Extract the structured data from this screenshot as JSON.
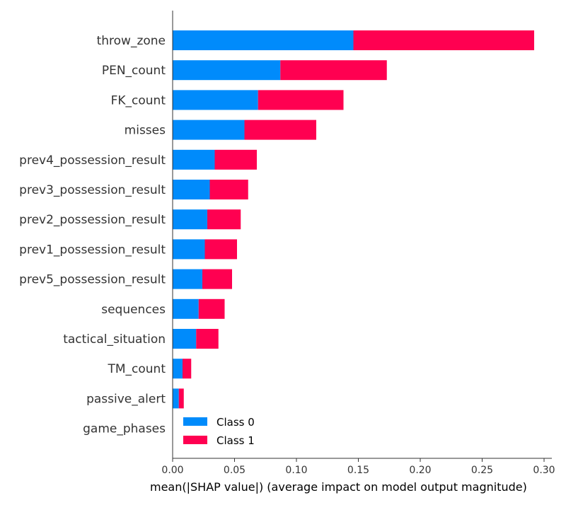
{
  "chart_data": {
    "type": "bar",
    "orientation": "horizontal",
    "stacked": true,
    "categories": [
      "throw_zone",
      "PEN_count",
      "FK_count",
      "misses",
      "prev4_possession_result",
      "prev3_possession_result",
      "prev2_possession_result",
      "prev1_possession_result",
      "prev5_possession_result",
      "sequences",
      "tactical_situation",
      "TM_count",
      "passive_alert",
      "game_phases"
    ],
    "series": [
      {
        "name": "Class 0",
        "color": "#008bfb",
        "values": [
          0.146,
          0.087,
          0.069,
          0.058,
          0.034,
          0.03,
          0.028,
          0.026,
          0.024,
          0.021,
          0.019,
          0.008,
          0.005,
          0.0
        ]
      },
      {
        "name": "Class 1",
        "color": "#ff0051",
        "values": [
          0.146,
          0.086,
          0.069,
          0.058,
          0.034,
          0.031,
          0.027,
          0.026,
          0.024,
          0.021,
          0.018,
          0.007,
          0.004,
          0.0
        ]
      }
    ],
    "xlabel": "mean(|SHAP value|) (average impact on model output magnitude)",
    "x_ticks": [
      "0.00",
      "0.05",
      "0.10",
      "0.15",
      "0.20",
      "0.25",
      "0.30"
    ],
    "x_tick_values": [
      0.0,
      0.05,
      0.1,
      0.15,
      0.2,
      0.25,
      0.3
    ],
    "xlim": [
      0.0,
      0.305
    ],
    "grid": false,
    "legend_position": "lower-left"
  }
}
